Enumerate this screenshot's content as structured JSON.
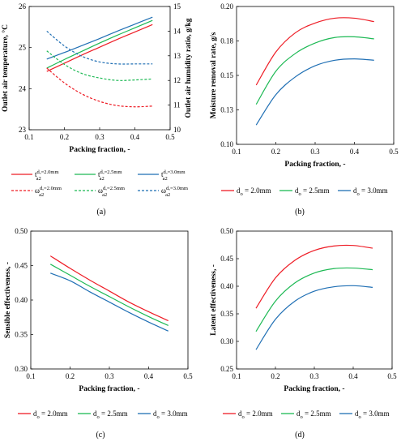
{
  "chart_data": [
    {
      "panel": "a",
      "type": "line",
      "caption": "(a)",
      "xlabel": "Packing fraction, -",
      "ylabel": "Outlet air temperature, °C",
      "ylabel_right": "Outlet air humidity ratio, g/kg",
      "xlim": [
        0.1,
        0.5
      ],
      "ylim": [
        23,
        26
      ],
      "ylim_right": [
        10,
        15
      ],
      "x_ticks": [
        "0.1",
        "0.2",
        "0.3",
        "0.4",
        "0.5"
      ],
      "y_ticks": [
        "23",
        "24",
        "25",
        "26"
      ],
      "y_ticks_right": [
        "10",
        "11",
        "12",
        "13",
        "14",
        "15"
      ],
      "x": [
        0.15,
        0.2,
        0.25,
        0.3,
        0.35,
        0.4,
        0.45
      ],
      "series": [
        {
          "name": "t_a2 (d_o=2.0mm)",
          "axis": "left",
          "style": "solid",
          "color": "#ee1c25",
          "values": [
            24.42,
            24.62,
            24.82,
            25.01,
            25.2,
            25.38,
            25.56
          ]
        },
        {
          "name": "t_a2 (d_o=2.5mm)",
          "axis": "left",
          "style": "solid",
          "color": "#1db954",
          "values": [
            24.5,
            24.71,
            24.91,
            25.11,
            25.3,
            25.48,
            25.66
          ]
        },
        {
          "name": "t_a2 (d_o=3.0mm)",
          "axis": "left",
          "style": "solid",
          "color": "#1f6fb4",
          "values": [
            24.72,
            24.88,
            25.05,
            25.22,
            25.4,
            25.57,
            25.74
          ]
        },
        {
          "name": "ω_a2 (d_o=2.0mm)",
          "axis": "right",
          "style": "dashed",
          "color": "#ee1c25",
          "values": [
            12.5,
            11.9,
            11.45,
            11.15,
            10.98,
            10.93,
            10.96
          ]
        },
        {
          "name": "ω_a2 (d_o=2.5mm)",
          "axis": "right",
          "style": "dashed",
          "color": "#1db954",
          "values": [
            13.2,
            12.65,
            12.28,
            12.1,
            12.0,
            12.02,
            12.06
          ]
        },
        {
          "name": "ω_a2 (d_o=3.0mm)",
          "axis": "right",
          "style": "dashed",
          "color": "#1f6fb4",
          "values": [
            14.0,
            13.4,
            12.98,
            12.75,
            12.67,
            12.67,
            12.67
          ]
        }
      ],
      "legend": [
        {
          "base": "t",
          "sub": "a2",
          "sup": "d_o=2.0mm",
          "style": "solid",
          "color": "#ee1c25"
        },
        {
          "base": "t",
          "sub": "a2",
          "sup": "d_o=2.5mm",
          "style": "solid",
          "color": "#1db954"
        },
        {
          "base": "t",
          "sub": "a2",
          "sup": "d_o=3.0mm",
          "style": "solid",
          "color": "#1f6fb4"
        },
        {
          "base": "ω",
          "sub": "a2",
          "sup": "d_o=2.0mm",
          "style": "dashed",
          "color": "#ee1c25"
        },
        {
          "base": "ω",
          "sub": "a2",
          "sup": "d_o=2.5mm",
          "style": "dashed",
          "color": "#1db954"
        },
        {
          "base": "ω",
          "sub": "a2",
          "sup": "d_o=3.0mm",
          "style": "dashed",
          "color": "#1f6fb4"
        }
      ]
    },
    {
      "panel": "b",
      "type": "line",
      "caption": "(b)",
      "xlabel": "Packing fraction, -",
      "ylabel": "Moisture removal rate, g/s",
      "xlim": [
        0.1,
        0.5
      ],
      "ylim": [
        0.1,
        0.2
      ],
      "x_ticks": [
        "0.1",
        "0.2",
        "0.3",
        "0.4",
        "0.5"
      ],
      "y_ticks": [
        "0.10",
        "0.13",
        "0.15",
        "0.18",
        "0.20"
      ],
      "x": [
        0.15,
        0.2,
        0.25,
        0.3,
        0.35,
        0.4,
        0.45
      ],
      "series": [
        {
          "name": "d_o = 2.0mm",
          "color": "#ee1c25",
          "values": [
            0.143,
            0.167,
            0.181,
            0.188,
            0.1915,
            0.1915,
            0.189
          ]
        },
        {
          "name": "d_o = 2.5mm",
          "color": "#1db954",
          "values": [
            0.129,
            0.153,
            0.166,
            0.1735,
            0.1775,
            0.178,
            0.1765
          ]
        },
        {
          "name": "d_o = 3.0mm",
          "color": "#1f6fb4",
          "values": [
            0.114,
            0.136,
            0.149,
            0.157,
            0.161,
            0.162,
            0.161
          ]
        }
      ],
      "legend": [
        {
          "base": "d",
          "sub": "o",
          "rest": " = 2.0mm",
          "color": "#ee1c25"
        },
        {
          "base": "d",
          "sub": "o",
          "rest": " = 2.5mm",
          "color": "#1db954"
        },
        {
          "base": "d",
          "sub": "o",
          "rest": " = 3.0mm",
          "color": "#1f6fb4"
        }
      ]
    },
    {
      "panel": "c",
      "type": "line",
      "caption": "(c)",
      "xlabel": "Packing fraction, -",
      "ylabel": "Sensible effectiveness, -",
      "xlim": [
        0.1,
        0.5
      ],
      "ylim": [
        0.3,
        0.5
      ],
      "x_ticks": [
        "0.1",
        "0.2",
        "0.3",
        "0.4",
        "0.5"
      ],
      "y_ticks": [
        "0.30",
        "0.35",
        "0.40",
        "0.45",
        "0.50"
      ],
      "x": [
        0.15,
        0.2,
        0.25,
        0.3,
        0.35,
        0.4,
        0.45
      ],
      "series": [
        {
          "name": "d_o = 2.0mm",
          "color": "#ee1c25",
          "values": [
            0.464,
            0.446,
            0.429,
            0.413,
            0.397,
            0.383,
            0.37
          ]
        },
        {
          "name": "d_o = 2.5mm",
          "color": "#1db954",
          "values": [
            0.452,
            0.436,
            0.42,
            0.405,
            0.39,
            0.376,
            0.363
          ]
        },
        {
          "name": "d_o = 3.0mm",
          "color": "#1f6fb4",
          "values": [
            0.439,
            0.428,
            0.412,
            0.397,
            0.382,
            0.368,
            0.355
          ]
        }
      ],
      "legend": [
        {
          "base": "d",
          "sub": "o",
          "rest": " = 2.0mm",
          "color": "#ee1c25"
        },
        {
          "base": "d",
          "sub": "o",
          "rest": " = 2.5mm",
          "color": "#1db954"
        },
        {
          "base": "d",
          "sub": "o",
          "rest": " = 3.0mm",
          "color": "#1f6fb4"
        }
      ]
    },
    {
      "panel": "d",
      "type": "line",
      "caption": "(d)",
      "xlabel": "Packing fraction, -",
      "ylabel": "Latent effectiveness, -",
      "xlim": [
        0.1,
        0.5
      ],
      "ylim": [
        0.25,
        0.5
      ],
      "x_ticks": [
        "0.1",
        "0.2",
        "0.3",
        "0.4",
        "0.5"
      ],
      "y_ticks": [
        "0.25",
        "0.30",
        "0.35",
        "0.40",
        "0.45",
        "0.50"
      ],
      "x": [
        0.15,
        0.2,
        0.25,
        0.3,
        0.35,
        0.4,
        0.45
      ],
      "series": [
        {
          "name": "d_o = 2.0mm",
          "color": "#ee1c25",
          "values": [
            0.36,
            0.415,
            0.447,
            0.465,
            0.473,
            0.474,
            0.469
          ]
        },
        {
          "name": "d_o = 2.5mm",
          "color": "#1db954",
          "values": [
            0.318,
            0.373,
            0.406,
            0.424,
            0.432,
            0.433,
            0.43
          ]
        },
        {
          "name": "d_o = 3.0mm",
          "color": "#1f6fb4",
          "values": [
            0.285,
            0.34,
            0.373,
            0.391,
            0.399,
            0.401,
            0.398
          ]
        }
      ],
      "legend": [
        {
          "base": "d",
          "sub": "o",
          "rest": " = 2.0mm",
          "color": "#ee1c25"
        },
        {
          "base": "d",
          "sub": "o",
          "rest": " = 2.5mm",
          "color": "#1db954"
        },
        {
          "base": "d",
          "sub": "o",
          "rest": " = 3.0mm",
          "color": "#1f6fb4"
        }
      ]
    }
  ]
}
